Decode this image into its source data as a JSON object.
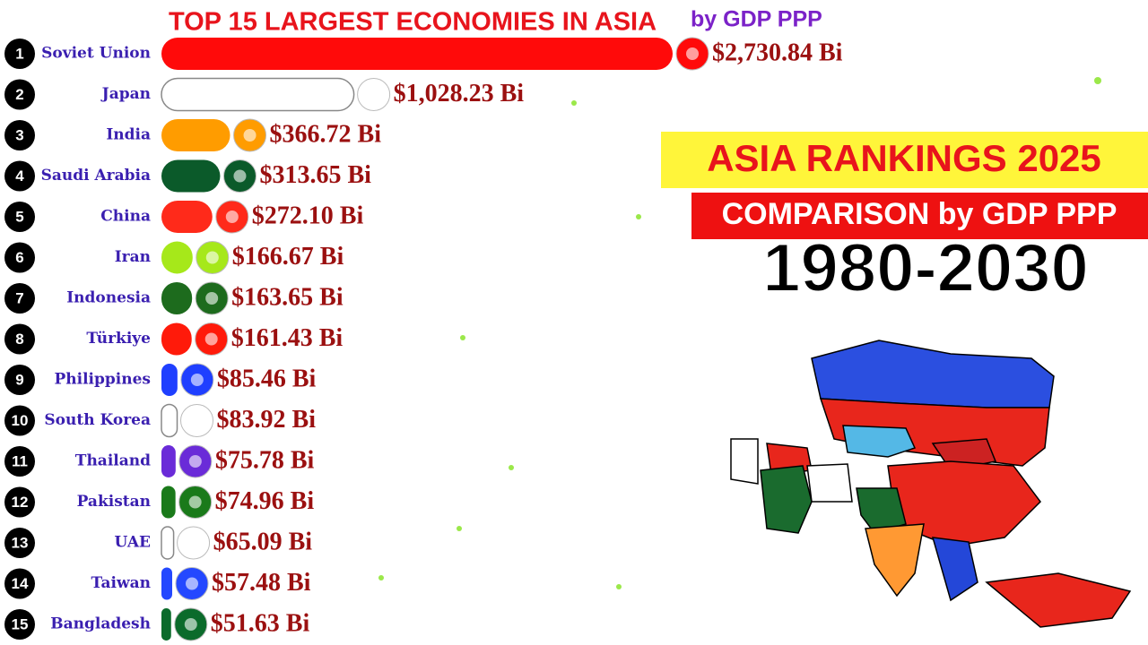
{
  "chart_data": {
    "type": "bar",
    "title": "TOP 15 LARGEST ECONOMIES IN ASIA",
    "subtitle": "by GDP PPP",
    "banner": "ASIA RANKINGS 2025",
    "banner_subtitle": "COMPARISON by GDP PPP",
    "period": "1980-2030",
    "ranks": [
      1,
      2,
      3,
      4,
      5,
      6,
      7,
      8,
      9,
      10,
      11,
      12,
      13,
      14,
      15
    ],
    "categories": [
      "Soviet Union",
      "Japan",
      "India",
      "Saudi Arabia",
      "China",
      "Iran",
      "Indonesia",
      "Türkiye",
      "Philippines",
      "South Korea",
      "Thailand",
      "Pakistan",
      "UAE",
      "Taiwan",
      "Bangladesh"
    ],
    "values": [
      2730.84,
      1028.23,
      366.72,
      313.65,
      272.1,
      166.67,
      163.65,
      161.43,
      85.46,
      83.92,
      75.78,
      74.96,
      65.09,
      57.48,
      51.63
    ],
    "value_labels": [
      "$2,730.84 Bi",
      "$1,028.23 Bi",
      "$366.72 Bi",
      "$313.65 Bi",
      "$272.10 Bi",
      "$166.67 Bi",
      "$163.65 Bi",
      "$161.43 Bi",
      "$85.46 Bi",
      "$83.92 Bi",
      "$75.78 Bi",
      "$74.96 Bi",
      "$65.09 Bi",
      "$57.48 Bi",
      "$51.63 Bi"
    ],
    "colors": [
      "#ff0a0a",
      "#ffffff",
      "#ff9c00",
      "#0b5a2a",
      "#ff2a1a",
      "#a6e81a",
      "#1d6b1d",
      "#ff1a0a",
      "#1f3fff",
      "#ffffff",
      "#6a2bd8",
      "#1a7a1a",
      "#ffffff",
      "#2448ff",
      "#0b6b2b"
    ]
  }
}
